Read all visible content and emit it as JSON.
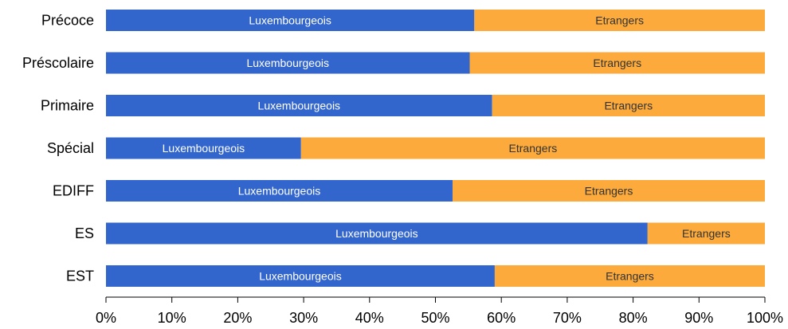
{
  "chart_data": {
    "type": "bar",
    "orientation": "horizontal",
    "stacked": true,
    "title": "",
    "xlabel": "",
    "ylabel": "",
    "xlim": [
      0,
      100
    ],
    "x_ticks": [
      "0%",
      "10%",
      "20%",
      "30%",
      "40%",
      "50%",
      "60%",
      "70%",
      "80%",
      "90%",
      "100%"
    ],
    "x_tick_values": [
      0,
      10,
      20,
      30,
      40,
      50,
      60,
      70,
      80,
      90,
      100
    ],
    "categories": [
      "Précoce",
      "Préscolaire",
      "Primaire",
      "Spécial",
      "EDIFF",
      "ES",
      "EST"
    ],
    "series": [
      {
        "label": "Luxembourgeois",
        "color": "#3366cc",
        "label_color": "#ffffff",
        "values": [
          55.9,
          55.2,
          58.6,
          29.6,
          52.6,
          82.2,
          59.0
        ]
      },
      {
        "label": "Etrangers",
        "color": "#fbaa3b",
        "label_color": "#333333",
        "values": [
          44.1,
          44.8,
          41.4,
          70.4,
          47.4,
          17.8,
          41.0
        ]
      }
    ],
    "grid": false,
    "legend": "none"
  }
}
